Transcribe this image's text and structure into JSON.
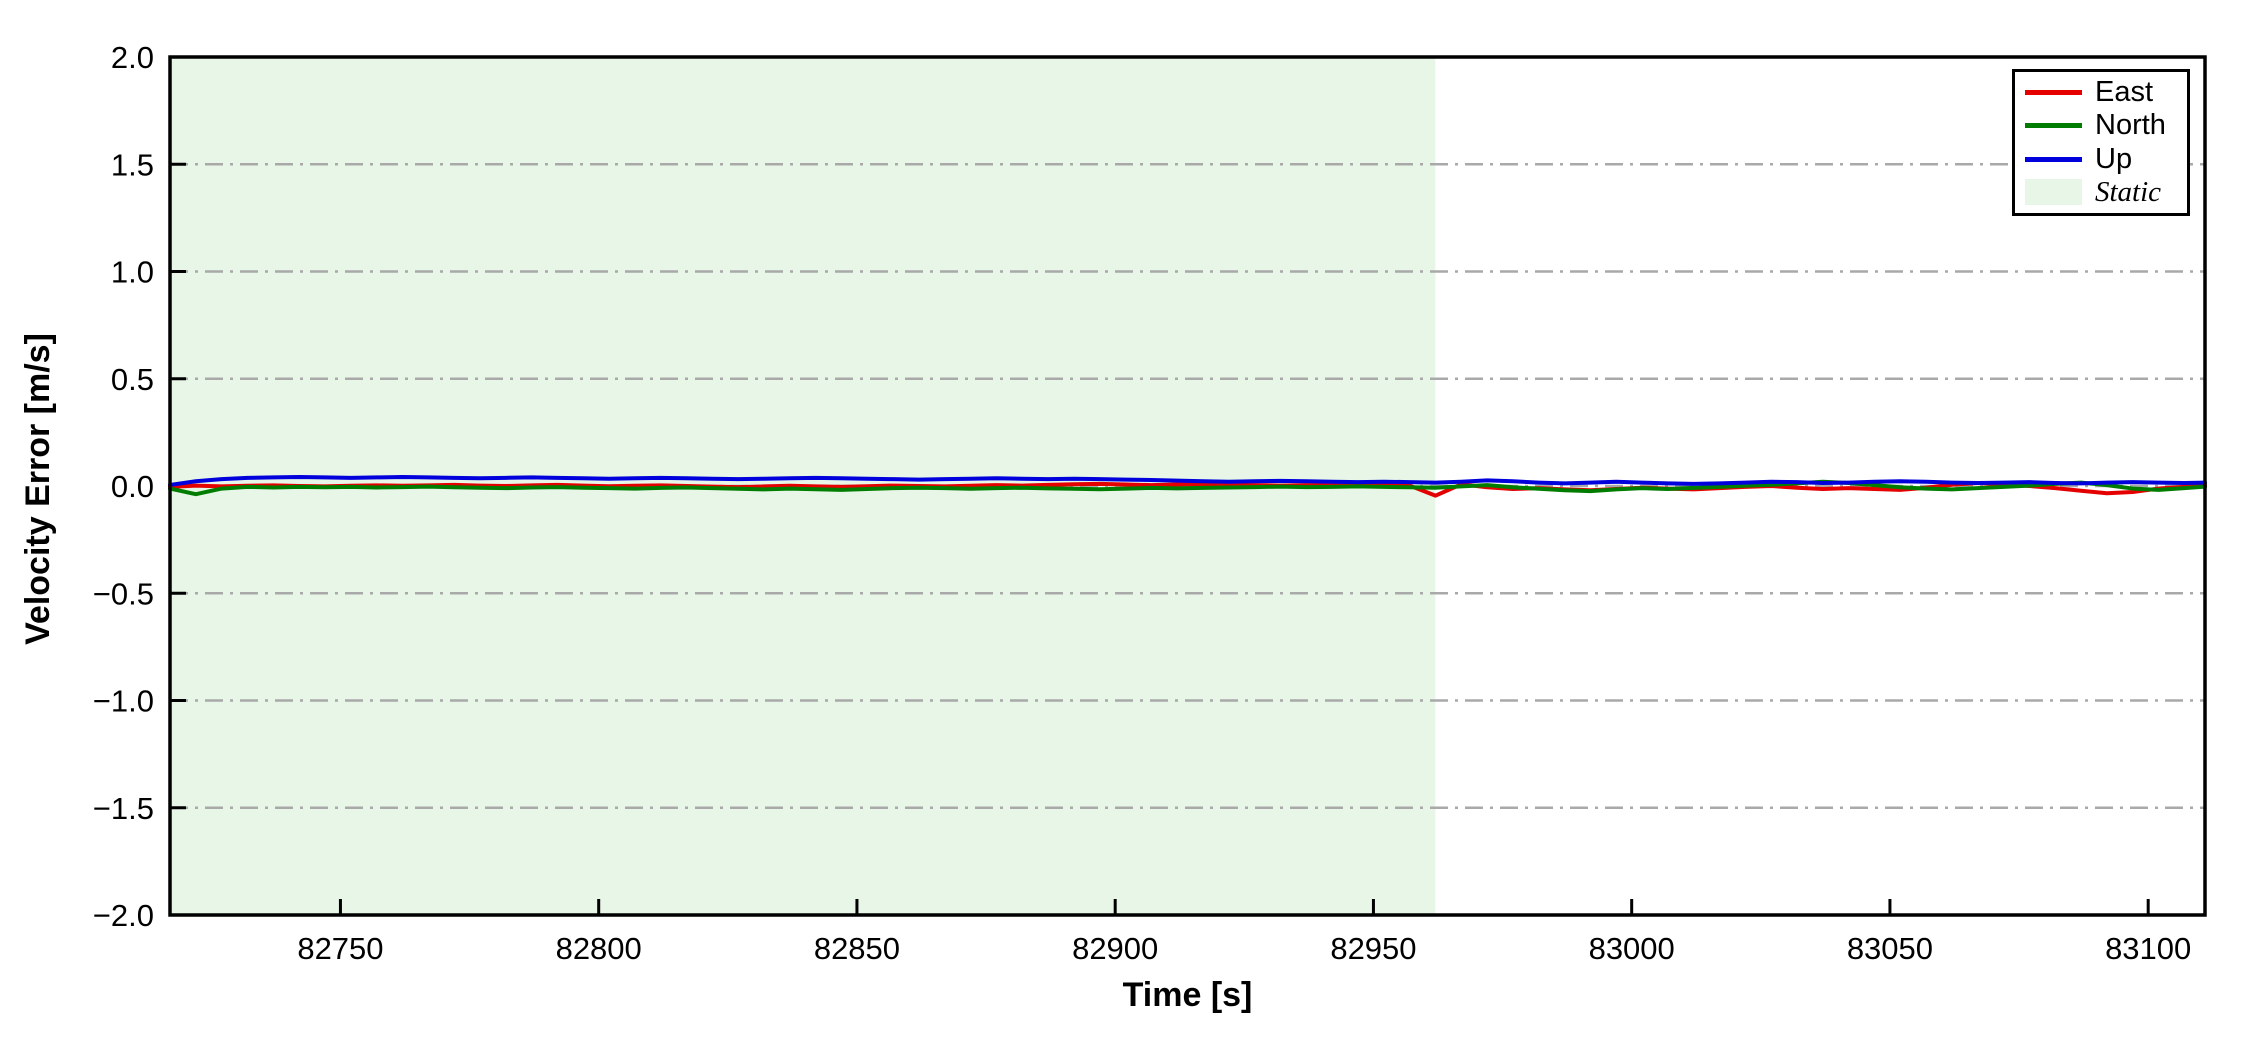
{
  "chart_data": {
    "type": "line",
    "title": "",
    "xlabel": "Time [s]",
    "ylabel": "Velocity Error [m/s]",
    "xlim": [
      82717,
      83111
    ],
    "ylim": [
      -2.0,
      2.0
    ],
    "x_ticks": [
      82750,
      82800,
      82850,
      82900,
      82950,
      83000,
      83050,
      83100
    ],
    "y_ticks": [
      2.0,
      1.5,
      1.0,
      0.5,
      0.0,
      -0.5,
      -1.0,
      -1.5,
      -2.0
    ],
    "grid": {
      "axis": "y",
      "style": "dash-dot",
      "color": "#a9a9a9"
    },
    "legend_position": "upper-right",
    "static_region": {
      "label": "Static",
      "x_start": 82717,
      "x_end": 82962,
      "color": "#e7f6e7"
    },
    "x": [
      82717,
      82722,
      82727,
      82732,
      82737,
      82742,
      82747,
      82752,
      82757,
      82762,
      82767,
      82772,
      82777,
      82782,
      82787,
      82792,
      82797,
      82802,
      82807,
      82812,
      82817,
      82822,
      82827,
      82832,
      82837,
      82842,
      82847,
      82852,
      82857,
      82862,
      82867,
      82872,
      82877,
      82882,
      82887,
      82892,
      82897,
      82902,
      82907,
      82912,
      82917,
      82922,
      82927,
      82932,
      82937,
      82942,
      82947,
      82952,
      82957,
      82962,
      82967,
      82972,
      82977,
      82982,
      82987,
      82992,
      82997,
      83002,
      83007,
      83012,
      83017,
      83022,
      83027,
      83032,
      83037,
      83042,
      83047,
      83052,
      83057,
      83062,
      83067,
      83072,
      83077,
      83082,
      83087,
      83092,
      83097,
      83102,
      83107,
      83111
    ],
    "series": [
      {
        "name": "East",
        "color": "#e50000",
        "values": [
          -0.004,
          0.002,
          -0.002,
          0.001,
          0.003,
          0.0,
          -0.002,
          0.001,
          0.003,
          0.001,
          0.003,
          0.005,
          0.002,
          0.0,
          0.003,
          0.005,
          0.002,
          -0.001,
          0.001,
          0.003,
          0.0,
          -0.003,
          -0.005,
          -0.002,
          0.001,
          -0.002,
          -0.004,
          -0.001,
          0.002,
          0.0,
          -0.002,
          0.001,
          0.004,
          0.002,
          0.005,
          0.008,
          0.01,
          0.007,
          0.004,
          0.007,
          0.009,
          0.006,
          0.004,
          0.002,
          0.004,
          0.003,
          0.002,
          0.003,
          0.002,
          -0.045,
          0.008,
          -0.006,
          -0.014,
          -0.01,
          -0.016,
          -0.02,
          -0.014,
          -0.008,
          -0.012,
          -0.016,
          -0.01,
          -0.004,
          0.0,
          -0.008,
          -0.014,
          -0.01,
          -0.014,
          -0.018,
          -0.008,
          0.006,
          0.014,
          0.008,
          0.0,
          -0.01,
          -0.022,
          -0.034,
          -0.028,
          -0.012,
          -0.004,
          0.004
        ]
      },
      {
        "name": "North",
        "color": "#007d00",
        "values": [
          -0.012,
          -0.038,
          -0.012,
          -0.004,
          -0.007,
          -0.004,
          -0.006,
          -0.004,
          -0.007,
          -0.005,
          -0.003,
          -0.006,
          -0.008,
          -0.01,
          -0.007,
          -0.005,
          -0.008,
          -0.01,
          -0.012,
          -0.009,
          -0.007,
          -0.01,
          -0.013,
          -0.016,
          -0.012,
          -0.015,
          -0.018,
          -0.014,
          -0.01,
          -0.008,
          -0.01,
          -0.013,
          -0.01,
          -0.008,
          -0.011,
          -0.013,
          -0.015,
          -0.012,
          -0.009,
          -0.011,
          -0.009,
          -0.007,
          -0.005,
          -0.003,
          -0.005,
          -0.004,
          -0.002,
          -0.004,
          -0.006,
          -0.008,
          -0.002,
          0.004,
          -0.006,
          -0.013,
          -0.02,
          -0.024,
          -0.016,
          -0.01,
          -0.014,
          -0.009,
          -0.004,
          0.002,
          0.006,
          0.012,
          0.02,
          0.014,
          0.004,
          -0.006,
          -0.012,
          -0.016,
          -0.01,
          -0.004,
          0.002,
          0.01,
          0.016,
          0.004,
          -0.012,
          -0.018,
          -0.01,
          -0.003
        ]
      },
      {
        "name": "Up",
        "color": "#0000dc",
        "values": [
          0.005,
          0.022,
          0.032,
          0.038,
          0.04,
          0.042,
          0.04,
          0.038,
          0.04,
          0.042,
          0.04,
          0.038,
          0.036,
          0.038,
          0.04,
          0.038,
          0.036,
          0.034,
          0.036,
          0.038,
          0.036,
          0.034,
          0.032,
          0.034,
          0.036,
          0.038,
          0.036,
          0.034,
          0.032,
          0.03,
          0.032,
          0.034,
          0.036,
          0.034,
          0.032,
          0.034,
          0.032,
          0.03,
          0.028,
          0.025,
          0.022,
          0.02,
          0.022,
          0.024,
          0.022,
          0.02,
          0.018,
          0.02,
          0.018,
          0.016,
          0.02,
          0.026,
          0.022,
          0.016,
          0.012,
          0.016,
          0.02,
          0.016,
          0.012,
          0.01,
          0.012,
          0.016,
          0.02,
          0.018,
          0.014,
          0.016,
          0.02,
          0.022,
          0.02,
          0.016,
          0.014,
          0.016,
          0.018,
          0.014,
          0.012,
          0.016,
          0.018,
          0.016,
          0.014,
          0.016
        ]
      }
    ]
  }
}
